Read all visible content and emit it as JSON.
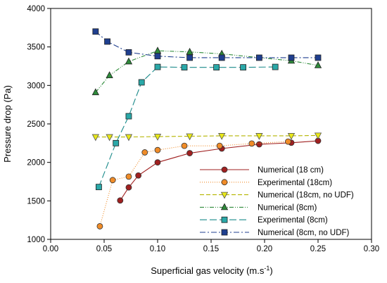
{
  "chart_data": {
    "type": "line",
    "xlabel": "Superficial gas velocity (m.s",
    "xlabel_superscript": "-1",
    "xlabel_close": ")",
    "ylabel": "Pressure drop (Pa)",
    "xlim": [
      0.0,
      0.3
    ],
    "ylim": [
      1000,
      4000
    ],
    "x_ticks": [
      "0.00",
      "0.05",
      "0.10",
      "0.15",
      "0.20",
      "0.25",
      "0.30"
    ],
    "x_tick_values": [
      0.0,
      0.05,
      0.1,
      0.15,
      0.2,
      0.25,
      0.3
    ],
    "y_ticks": [
      "1000",
      "1500",
      "2000",
      "2500",
      "3000",
      "3500",
      "4000"
    ],
    "y_tick_values": [
      1000,
      1500,
      2000,
      2500,
      3000,
      3500,
      4000
    ],
    "grid": false,
    "legend_position": "bottom-right",
    "series": [
      {
        "name": "Numerical (18 cm)",
        "color": "#a02020",
        "marker": "circle",
        "marker_fill": "#a02020",
        "dash": "",
        "x": [
          0.065,
          0.073,
          0.082,
          0.1,
          0.13,
          0.16,
          0.195,
          0.225,
          0.25
        ],
        "y": [
          1505,
          1675,
          1830,
          2000,
          2120,
          2180,
          2235,
          2255,
          2280
        ]
      },
      {
        "name": "Experimental (18cm)",
        "color": "#f08c28",
        "marker": "circle",
        "marker_fill": "#f08c28",
        "dash": "1,2",
        "x": [
          0.046,
          0.058,
          0.073,
          0.088,
          0.1,
          0.125,
          0.158,
          0.188,
          0.222
        ],
        "y": [
          1170,
          1770,
          1815,
          2130,
          2160,
          2215,
          2215,
          2245,
          2270
        ]
      },
      {
        "name": "Numerical (18cm, no UDF)",
        "color": "#b5b500",
        "marker": "triangle-down",
        "marker_fill": "#e8e818",
        "dash": "6,3",
        "x": [
          0.042,
          0.055,
          0.073,
          0.1,
          0.13,
          0.16,
          0.195,
          0.225,
          0.25
        ],
        "y": [
          2330,
          2330,
          2330,
          2335,
          2340,
          2345,
          2345,
          2345,
          2350
        ]
      },
      {
        "name": "Numerical (8cm)",
        "color": "#2e8b3a",
        "marker": "triangle-up",
        "marker_fill": "#2e8b3a",
        "dash": "6,2,1,2,1,2",
        "x": [
          0.042,
          0.055,
          0.073,
          0.1,
          0.13,
          0.16,
          0.225,
          0.25
        ],
        "y": [
          2910,
          3130,
          3310,
          3450,
          3435,
          3410,
          3320,
          3260
        ]
      },
      {
        "name": "Experimental (8cm)",
        "color": "#1a8a8a",
        "marker": "square",
        "marker_fill": "#2aa8a8",
        "dash": "10,4",
        "x": [
          0.045,
          0.061,
          0.073,
          0.085,
          0.1,
          0.125,
          0.155,
          0.18,
          0.21
        ],
        "y": [
          1680,
          2250,
          2600,
          3040,
          3240,
          3235,
          3235,
          3235,
          3240
        ]
      },
      {
        "name": "Numerical (8cm, no UDF)",
        "color": "#1f3f8f",
        "marker": "square",
        "marker_fill": "#1f3f8f",
        "dash": "8,3,2,3",
        "x": [
          0.042,
          0.053,
          0.073,
          0.1,
          0.13,
          0.16,
          0.195,
          0.225,
          0.25
        ],
        "y": [
          3700,
          3570,
          3430,
          3380,
          3360,
          3360,
          3360,
          3360,
          3360
        ]
      }
    ]
  }
}
